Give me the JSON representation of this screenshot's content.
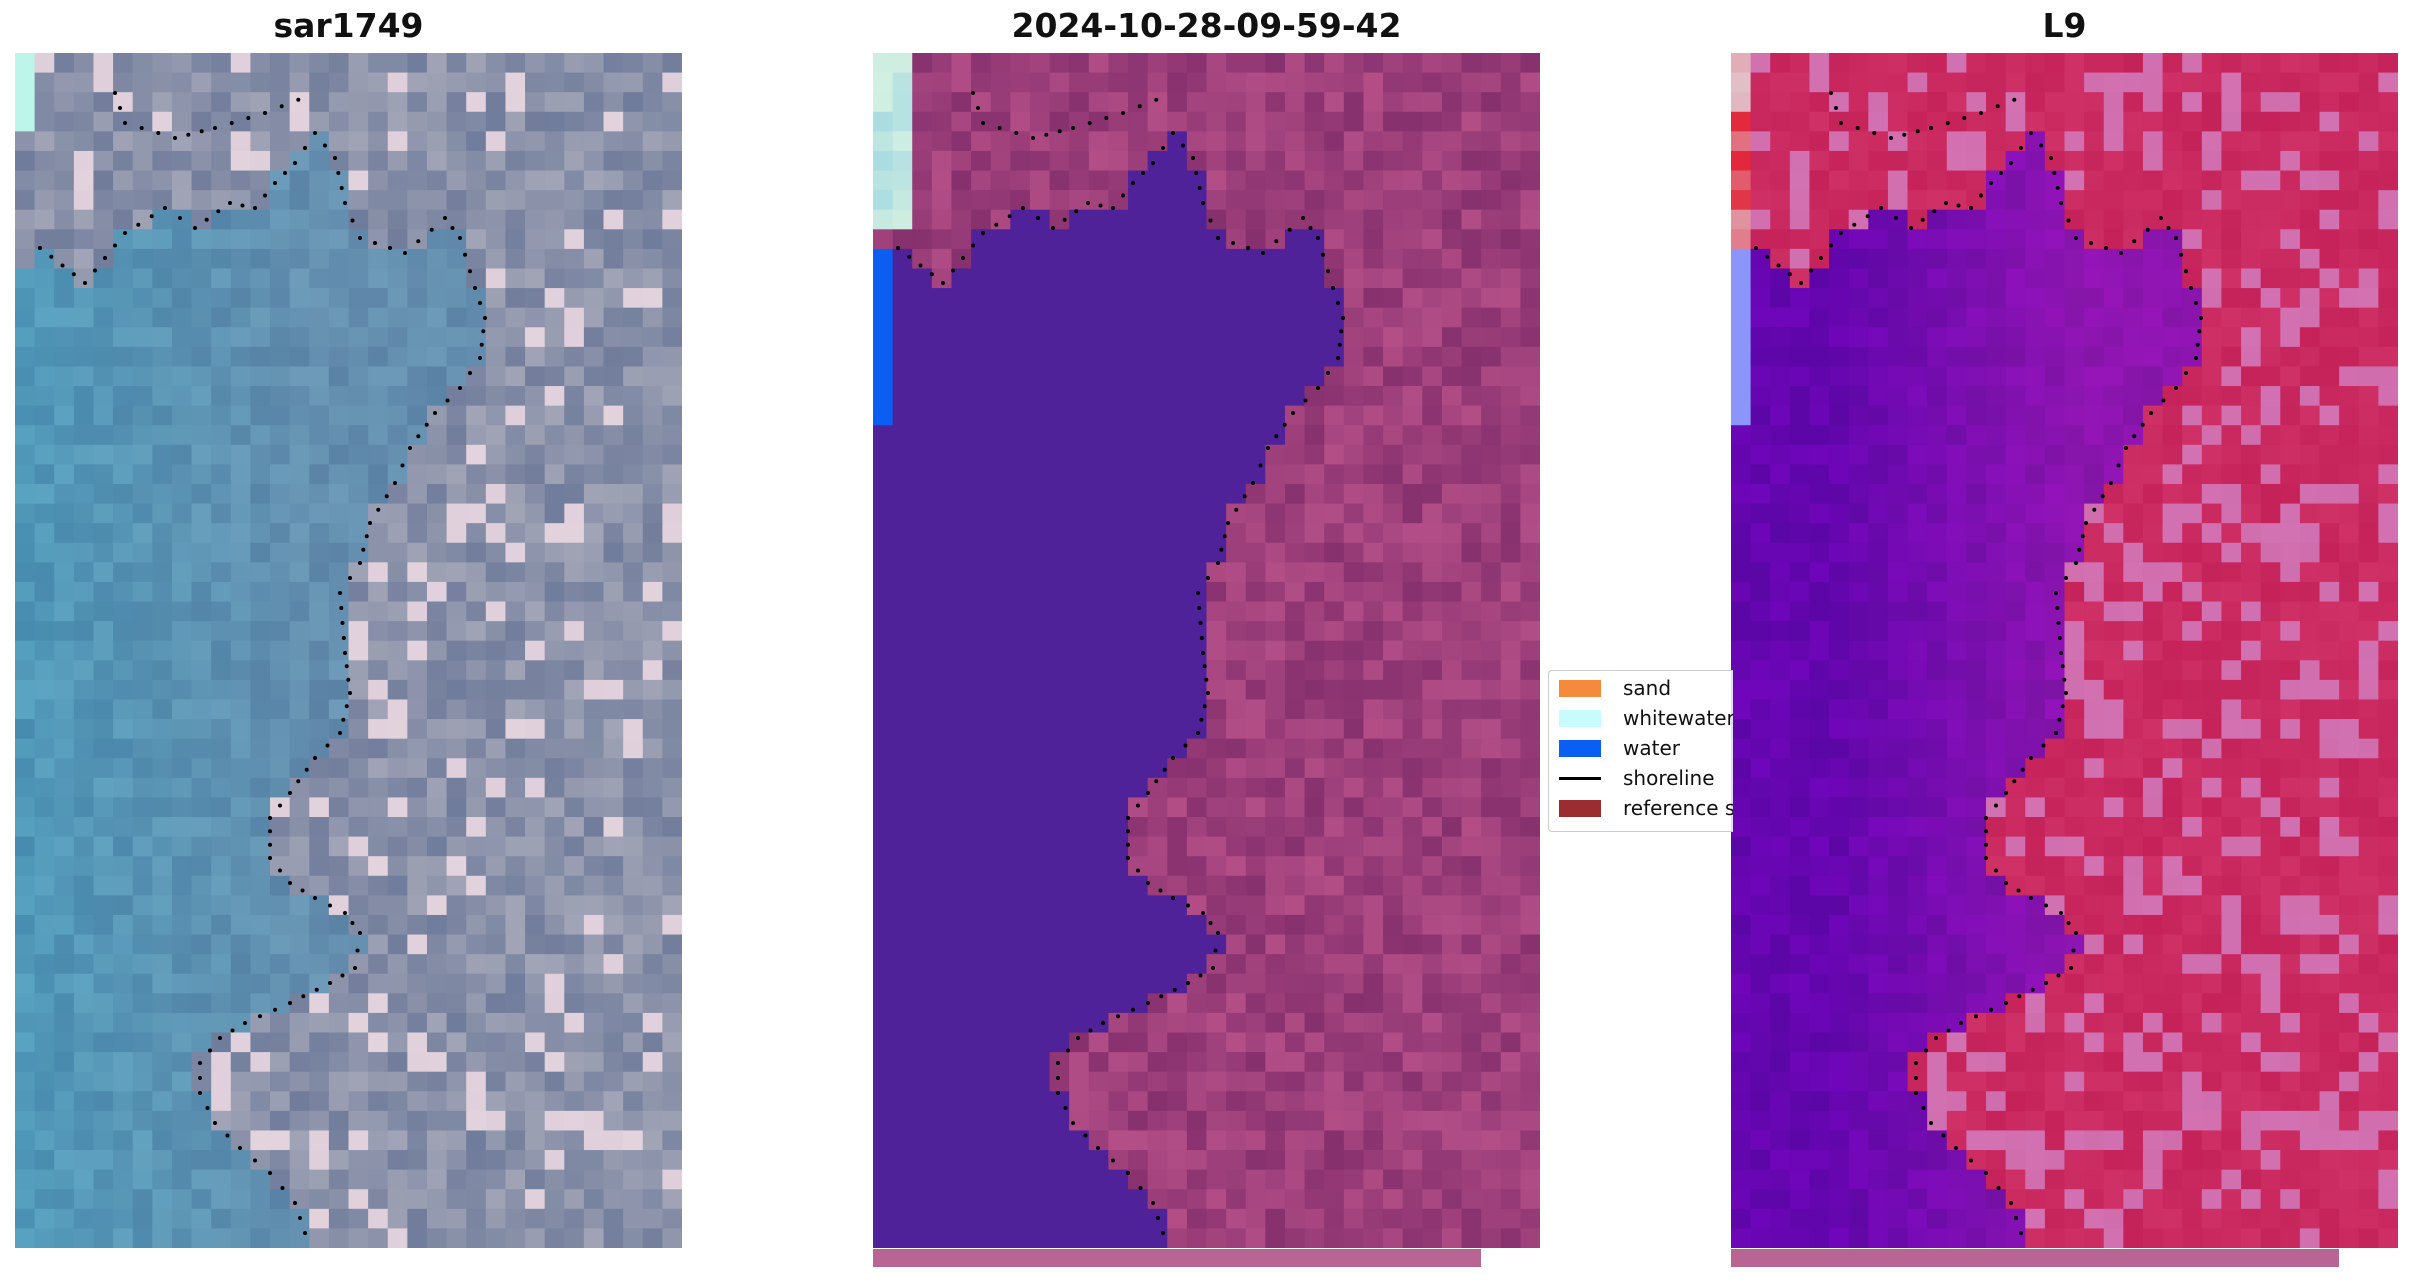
{
  "panels": [
    {
      "title": "sar1749",
      "variant": "rgb"
    },
    {
      "title": "2024-10-28-09-59-42",
      "variant": "classified"
    },
    {
      "title": "L9",
      "variant": "index"
    }
  ],
  "legend": {
    "items": [
      {
        "label": "sand",
        "color": "#f58a3c",
        "kind": "patch"
      },
      {
        "label": "whitewater",
        "color": "#c8fbfb",
        "kind": "patch"
      },
      {
        "label": "water",
        "color": "#0a5ff2",
        "kind": "patch"
      },
      {
        "label": "shoreline",
        "color": "#000000",
        "kind": "line"
      },
      {
        "label": "reference shoreline",
        "color": "#9b2d30",
        "kind": "patch"
      }
    ]
  },
  "colors": {
    "water_class": "#50229a",
    "land_class": "#86306e",
    "index_land": "#c42258",
    "index_water": "#5b06a6",
    "bottom_strip": "#b86594"
  }
}
